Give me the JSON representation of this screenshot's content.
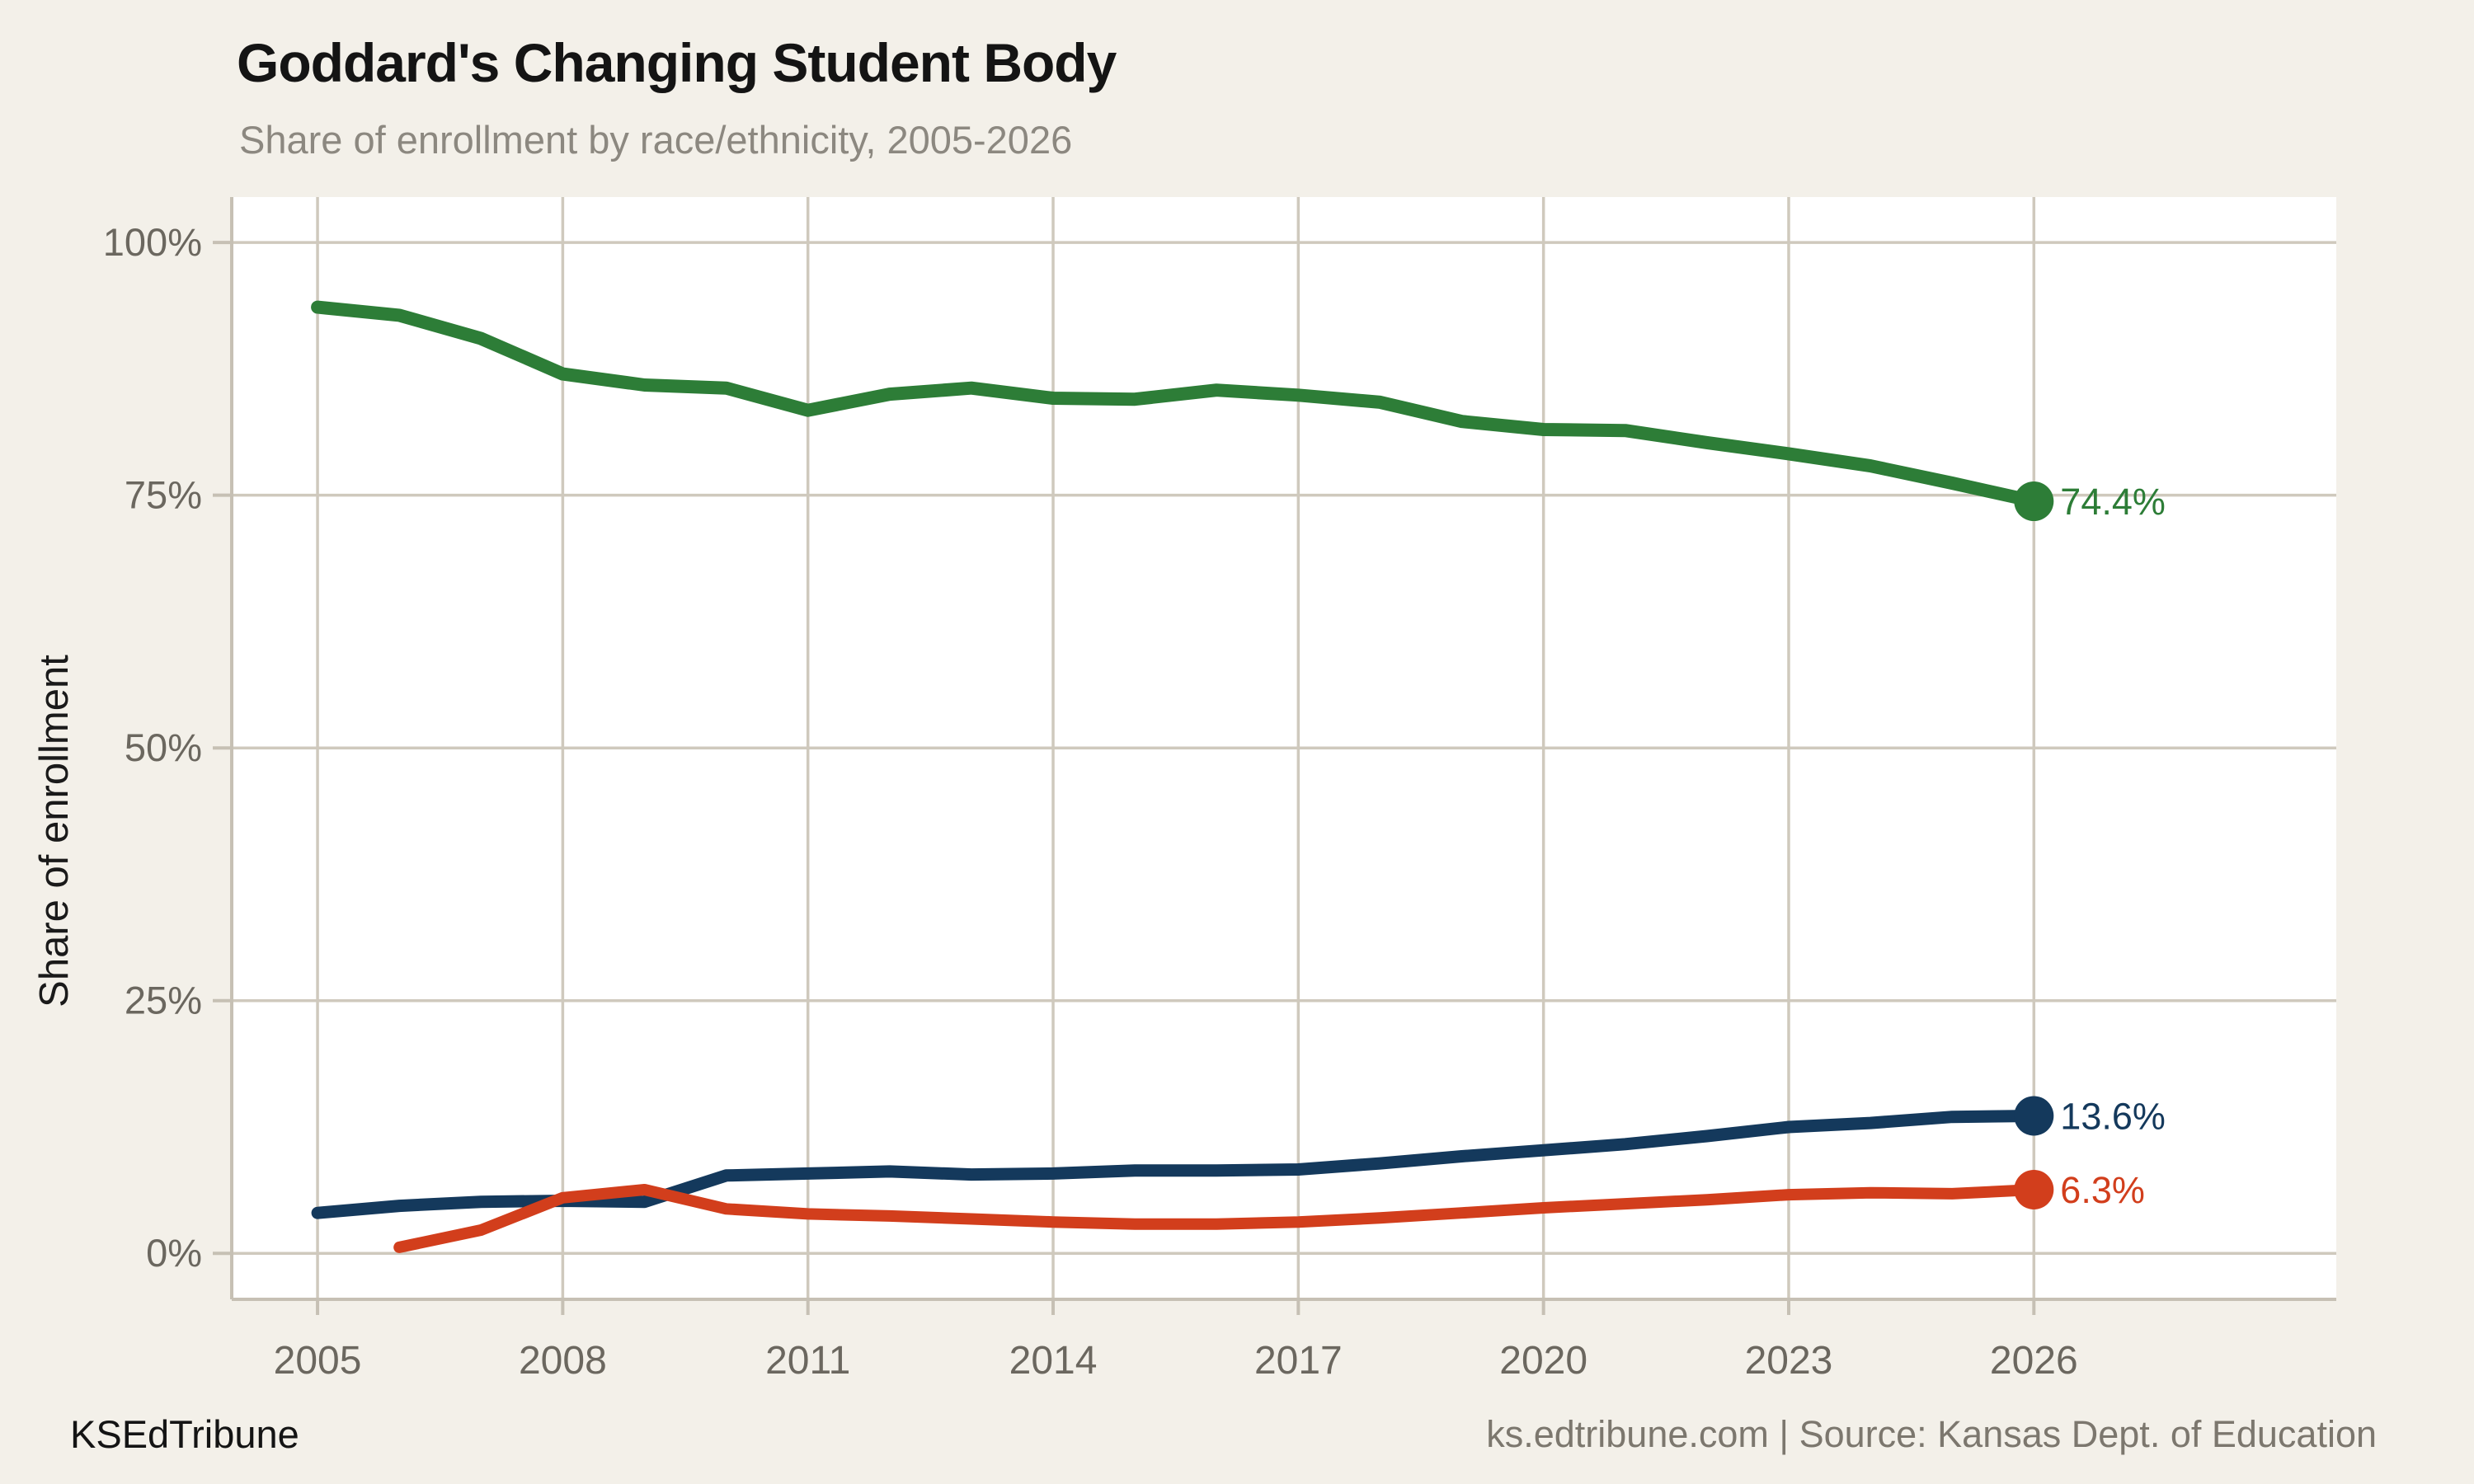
{
  "header": {
    "title": "Goddard's Changing Student Body",
    "subtitle": "Share of enrollment by race/ethnicity, 2005-2026"
  },
  "footer": {
    "brand": "KSEdTribune",
    "attribution": "ks.edtribune.com | Source: Kansas Dept. of Education"
  },
  "colors": {
    "background": "#f3f0e9",
    "panel": "#ffffff",
    "grid": "#cfc9bd",
    "axis": "#c6c0b4",
    "tick_text": "#6b675f",
    "title_text": "#141414",
    "subtitle_text": "#8c8880",
    "footer_text": "#7c776e",
    "ylabel_text": "#1a1a1a"
  },
  "chart_data": {
    "type": "line",
    "title": "Goddard's Changing Student Body",
    "subtitle": "Share of enrollment by race/ethnicity, 2005-2026",
    "xlabel": "",
    "ylabel": "Share of enrollment",
    "grid": true,
    "legend": false,
    "xlim": [
      2003.95,
      2029.7
    ],
    "ylim": [
      -4.55,
      104.5
    ],
    "x_ticks": [
      {
        "value": 2005,
        "label": "2005"
      },
      {
        "value": 2008,
        "label": "2008"
      },
      {
        "value": 2011,
        "label": "2011"
      },
      {
        "value": 2014,
        "label": "2014"
      },
      {
        "value": 2017,
        "label": "2017"
      },
      {
        "value": 2020,
        "label": "2020"
      },
      {
        "value": 2023,
        "label": "2023"
      },
      {
        "value": 2026,
        "label": "2026"
      }
    ],
    "y_ticks": [
      {
        "value": 0,
        "label": "0%"
      },
      {
        "value": 25,
        "label": "25%"
      },
      {
        "value": 50,
        "label": "50%"
      },
      {
        "value": 75,
        "label": "75%"
      },
      {
        "value": 100,
        "label": "100%"
      }
    ],
    "x": [
      2005,
      2006,
      2007,
      2008,
      2009,
      2010,
      2011,
      2012,
      2013,
      2014,
      2015,
      2016,
      2017,
      2018,
      2019,
      2020,
      2021,
      2022,
      2023,
      2024,
      2025,
      2026
    ],
    "series": [
      {
        "id": "green",
        "color": "#2d7d37",
        "stroke_width": 16,
        "end_label": "74.4%",
        "values": [
          93.6,
          92.8,
          90.5,
          87.0,
          85.9,
          85.6,
          83.4,
          85.0,
          85.6,
          84.6,
          84.5,
          85.4,
          84.9,
          84.2,
          82.3,
          81.5,
          81.4,
          80.2,
          79.1,
          77.9,
          76.2,
          74.4
        ]
      },
      {
        "id": "navy",
        "color": "#14395c",
        "stroke_width": 15,
        "end_label": "13.6%",
        "values": [
          4.0,
          4.7,
          5.1,
          5.2,
          5.1,
          7.7,
          7.9,
          8.1,
          7.8,
          7.9,
          8.2,
          8.2,
          8.3,
          8.9,
          9.6,
          10.2,
          10.8,
          11.6,
          12.5,
          12.9,
          13.5,
          13.6
        ]
      },
      {
        "id": "orange-red",
        "color": "#d23e1c",
        "stroke_width": 14,
        "end_label": "6.3%",
        "values": [
          null,
          0.6,
          2.3,
          5.5,
          6.3,
          4.4,
          3.9,
          3.7,
          3.4,
          3.1,
          2.9,
          2.9,
          3.1,
          3.5,
          4.0,
          4.5,
          4.9,
          5.3,
          5.8,
          6.0,
          5.9,
          6.3
        ]
      }
    ]
  }
}
